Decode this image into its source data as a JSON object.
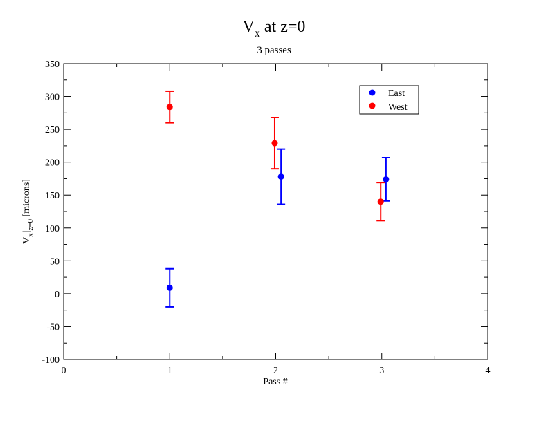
{
  "chart_data": {
    "type": "scatter",
    "title": "V",
    "title_subscript": "x",
    "title_suffix": " at z=0",
    "subtitle": "3 passes",
    "xlabel": "Pass #",
    "ylabel_parts": {
      "v": "V",
      "x_sub": "x",
      "bar": "|",
      "z_sub": "z=0",
      "unit": " [microns]"
    },
    "xlim": [
      0,
      4
    ],
    "ylim": [
      -100,
      350
    ],
    "xticks": [
      0,
      1,
      2,
      3,
      4
    ],
    "yticks": [
      -100,
      -50,
      0,
      50,
      100,
      150,
      200,
      250,
      300,
      350
    ],
    "xtick_labels": [
      "0",
      "1",
      "2",
      "3",
      "4"
    ],
    "ytick_labels": [
      "-100",
      "-50",
      "0",
      "50",
      "100",
      "150",
      "200",
      "250",
      "300",
      "350"
    ],
    "grid": false,
    "legend_position": "top-right",
    "series": [
      {
        "name": "East",
        "color": "#0000ff",
        "points": [
          {
            "x": 1.0,
            "y": 9,
            "err": 29
          },
          {
            "x": 2.05,
            "y": 178,
            "err": 42
          },
          {
            "x": 3.04,
            "y": 174,
            "err": 33
          }
        ]
      },
      {
        "name": "West",
        "color": "#ff0000",
        "points": [
          {
            "x": 1.0,
            "y": 284,
            "err": 24
          },
          {
            "x": 1.99,
            "y": 229,
            "err": 39
          },
          {
            "x": 2.99,
            "y": 140,
            "err": 29
          }
        ]
      }
    ]
  }
}
